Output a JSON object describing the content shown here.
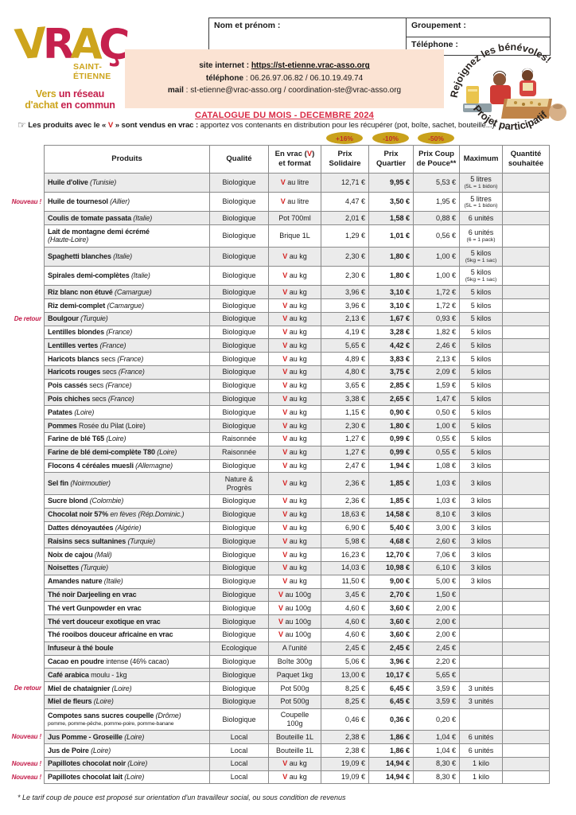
{
  "logo": {
    "l1": "V",
    "l2": "R",
    "l3": "A",
    "l4": "Ç",
    "city": "SAINT-\nÉTIENNE",
    "tagline1a": "Vers ",
    "tagline1b": "un réseau",
    "tagline2a": "d'achat ",
    "tagline2b": "en commun"
  },
  "form": {
    "name_label": "Nom et prénom :",
    "group_label": "Groupement :",
    "phone_label": "Téléphone :"
  },
  "contact": {
    "sep": " : ",
    "site_label": "site internet",
    "site_url": "https://st-etienne.vrac-asso.org",
    "phone_label": "téléphone",
    "phone_value": "06.26.97.06.82 / 06.10.19.49.74",
    "mail_label": "mail",
    "mail_value": "st-etienne@vrac-asso.org / coordination-ste@vrac-asso.org"
  },
  "catalogue_title": "CATALOGUE DU MOIS - DECEMBRE 2024",
  "badge": {
    "top": "Rejoignez les bénévoles!",
    "bottom": "Projet participatif"
  },
  "note": {
    "hand": "☞",
    "bold_pre": "Les produits avec le « ",
    "v": "V",
    "bold_post": " » sont vendus en vrac :",
    "rest": " apportez vos contenants en distribution pour les récupérer (pot, boîte, sachet, bouteille...)"
  },
  "discounts": [
    "+16%",
    "-10%",
    "-50%"
  ],
  "table": {
    "columns": {
      "produits": "Produits",
      "qualite": "Qualité",
      "envrac_pre": "En vrac (",
      "envrac_v": "V",
      "envrac_post": ")",
      "envrac_line2": "et format",
      "solidaire": "Prix\nSolidaire",
      "quartier": "Prix\nQuartier",
      "pouce": "Prix Coup\nde Pouce**",
      "maximum": "Maximum",
      "quantite": "Quantité\nsouhaitée"
    },
    "rows": [
      {
        "n": "Huile d'olive",
        "o": "(Tunisie)",
        "q": "Biologique",
        "v": true,
        "f": "au litre",
        "p1": "12,71 €",
        "p2": "9,95 €",
        "p3": "5,53 €",
        "m": "5 litres",
        "mn": "(5L = 1 bidon)"
      },
      {
        "t": "Nouveau !",
        "n": "Huile de tournesol",
        "o": "(Allier)",
        "q": "Biologique",
        "v": true,
        "f": "au litre",
        "p1": "4,47 €",
        "p2": "3,50 €",
        "p3": "1,95 €",
        "m": "5 litres",
        "mn": "(5L = 1 bidon)"
      },
      {
        "n": "Coulis de tomate passata",
        "o": "(Italie)",
        "q": "Biologique",
        "v": false,
        "f": "Pot 700ml",
        "p1": "2,01 €",
        "p2": "1,58 €",
        "p3": "0,88 €",
        "m": "6 unités"
      },
      {
        "n": "Lait de montagne demi écrémé",
        "o": "(Haute-Loire)",
        "o2": true,
        "q": "Biologique",
        "v": false,
        "f": "Brique 1L",
        "p1": "1,29 €",
        "p2": "1,01 €",
        "p3": "0,56 €",
        "m": "6 unités",
        "mn": "(6 = 1 pack)"
      },
      {
        "n": "Spaghetti blanches",
        "o": "(Italie)",
        "q": "Biologique",
        "v": true,
        "f": "au kg",
        "p1": "2,30 €",
        "p2": "1,80 €",
        "p3": "1,00 €",
        "m": "5 kilos",
        "mn": "(5kg = 1 sac)"
      },
      {
        "n": "Spirales demi-complètes",
        "o": "(Italie)",
        "q": "Biologique",
        "v": true,
        "f": "au kg",
        "p1": "2,30 €",
        "p2": "1,80 €",
        "p3": "1,00 €",
        "m": "5 kilos",
        "mn": "(5kg = 1 sac)"
      },
      {
        "n": "Riz blanc non étuvé",
        "o": "(Camargue)",
        "q": "Biologique",
        "v": true,
        "f": "au kg",
        "p1": "3,96 €",
        "p2": "3,10 €",
        "p3": "1,72 €",
        "m": "5 kilos"
      },
      {
        "n": "Riz demi-complet",
        "o": "(Camargue)",
        "q": "Biologique",
        "v": true,
        "f": "au kg",
        "p1": "3,96 €",
        "p2": "3,10 €",
        "p3": "1,72 €",
        "m": "5 kilos"
      },
      {
        "t": "De retour",
        "n": "Boulgour",
        "o": "(Turquie)",
        "q": "Biologique",
        "v": true,
        "f": "au kg",
        "p1": "2,13 €",
        "p2": "1,67 €",
        "p3": "0,93 €",
        "m": "5 kilos"
      },
      {
        "n": "Lentilles blondes",
        "o": "(France)",
        "q": "Biologique",
        "v": true,
        "f": "au kg",
        "p1": "4,19 €",
        "p2": "3,28 €",
        "p3": "1,82 €",
        "m": "5 kilos"
      },
      {
        "n": "Lentilles vertes",
        "o": "(France)",
        "q": "Biologique",
        "v": true,
        "f": "au kg",
        "p1": "5,65 €",
        "p2": "4,42 €",
        "p3": "2,46 €",
        "m": "5 kilos"
      },
      {
        "n": "Haricots blancs",
        "d": "secs",
        "o": "(France)",
        "q": "Biologique",
        "v": true,
        "f": "au kg",
        "p1": "4,89 €",
        "p2": "3,83 €",
        "p3": "2,13 €",
        "m": "5 kilos"
      },
      {
        "n": "Haricots rouges",
        "d": "secs",
        "o": "(France)",
        "q": "Biologique",
        "v": true,
        "f": "au kg",
        "p1": "4,80 €",
        "p2": "3,75 €",
        "p3": "2,09 €",
        "m": "5 kilos"
      },
      {
        "n": "Pois cassés",
        "d": "secs",
        "o": "(France)",
        "q": "Biologique",
        "v": true,
        "f": "au kg",
        "p1": "3,65 €",
        "p2": "2,85 €",
        "p3": "1,59 €",
        "m": "5 kilos"
      },
      {
        "n": "Pois chiches",
        "d": "secs",
        "o": "(France)",
        "q": "Biologique",
        "v": true,
        "f": "au kg",
        "p1": "3,38 €",
        "p2": "2,65 €",
        "p3": "1,47 €",
        "m": "5 kilos"
      },
      {
        "n": "Patates",
        "o": "(Loire)",
        "q": "Biologique",
        "v": true,
        "f": "au kg",
        "p1": "1,15 €",
        "p2": "0,90 €",
        "p3": "0,50 €",
        "m": "5 kilos"
      },
      {
        "n": "Pommes",
        "d": "Rosée du Pilat (Loire)",
        "q": "Biologique",
        "v": true,
        "f": "au kg",
        "p1": "2,30 €",
        "p2": "1,80 €",
        "p3": "1,00 €",
        "m": "5 kilos"
      },
      {
        "n": "Farine de blé T65",
        "o": "(Loire)",
        "q": "Raisonnée",
        "v": true,
        "f": "au kg",
        "p1": "1,27 €",
        "p2": "0,99 €",
        "p3": "0,55 €",
        "m": "5 kilos"
      },
      {
        "n": "Farine de blé demi-complète T80",
        "o": "(Loire)",
        "q": "Raisonnée",
        "v": true,
        "f": "au kg",
        "p1": "1,27 €",
        "p2": "0,99 €",
        "p3": "0,55 €",
        "m": "5 kilos"
      },
      {
        "n": "Flocons 4 céréales muesli",
        "o": "(Allemagne)",
        "q": "Biologique",
        "v": true,
        "f": "au kg",
        "p1": "2,47 €",
        "p2": "1,94 €",
        "p3": "1,08 €",
        "m": "3 kilos"
      },
      {
        "n": "Sel fin",
        "o": "(Noirmoutier)",
        "q": "Nature & Progrès",
        "v": true,
        "f": "au kg",
        "p1": "2,36 €",
        "p2": "1,85 €",
        "p3": "1,03 €",
        "m": "3 kilos"
      },
      {
        "n": "Sucre blond",
        "o": "(Colombie)",
        "q": "Biologique",
        "v": true,
        "f": "au kg",
        "p1": "2,36 €",
        "p2": "1,85 €",
        "p3": "1,03 €",
        "m": "3 kilos"
      },
      {
        "n": "Chocolat noir 57%",
        "o": "en fèves (Rép.Dominic.)",
        "q": "Biologique",
        "v": true,
        "f": "au kg",
        "p1": "18,63 €",
        "p2": "14,58 €",
        "p3": "8,10 €",
        "m": "3 kilos"
      },
      {
        "n": "Dattes dénoyautées",
        "o": "(Algérie)",
        "q": "Biologique",
        "v": true,
        "f": "au kg",
        "p1": "6,90 €",
        "p2": "5,40 €",
        "p3": "3,00 €",
        "m": "3 kilos"
      },
      {
        "n": "Raisins secs sultanines",
        "o": "(Turquie)",
        "q": "Biologique",
        "v": true,
        "f": "au kg",
        "p1": "5,98 €",
        "p2": "4,68 €",
        "p3": "2,60 €",
        "m": "3 kilos"
      },
      {
        "n": "Noix de cajou",
        "o": "(Mali)",
        "q": "Biologique",
        "v": true,
        "f": "au kg",
        "p1": "16,23 €",
        "p2": "12,70 €",
        "p3": "7,06 €",
        "m": "3 kilos"
      },
      {
        "n": "Noisettes",
        "o": "(Turquie)",
        "q": "Biologique",
        "v": true,
        "f": "au kg",
        "p1": "14,03 €",
        "p2": "10,98 €",
        "p3": "6,10 €",
        "m": "3 kilos"
      },
      {
        "n": "Amandes nature",
        "o": "(Italie)",
        "q": "Biologique",
        "v": true,
        "f": "au kg",
        "p1": "11,50 €",
        "p2": "9,00 €",
        "p3": "5,00 €",
        "m": "3 kilos"
      },
      {
        "n": "Thé noir Darjeeling en vrac",
        "q": "Biologique",
        "v": true,
        "f": "au 100g",
        "p1": "3,45 €",
        "p2": "2,70 €",
        "p3": "1,50 €"
      },
      {
        "n": "Thé vert Gunpowder en vrac",
        "q": "Biologique",
        "v": true,
        "f": "au 100g",
        "p1": "4,60 €",
        "p2": "3,60 €",
        "p3": "2,00 €"
      },
      {
        "n": "Thé vert douceur exotique en vrac",
        "q": "Biologique",
        "v": true,
        "f": "au 100g",
        "p1": "4,60 €",
        "p2": "3,60 €",
        "p3": "2,00 €"
      },
      {
        "n": "Thé rooibos douceur africaine en vrac",
        "q": "Biologique",
        "v": true,
        "f": "au 100g",
        "p1": "4,60 €",
        "p2": "3,60 €",
        "p3": "2,00 €"
      },
      {
        "n": "Infuseur à thé boule",
        "q": "Ecologique",
        "v": false,
        "f": "A l'unité",
        "p1": "2,45 €",
        "p2": "2,45 €",
        "p3": "2,45 €"
      },
      {
        "n": "Cacao en poudre",
        "d": "intense (46% cacao)",
        "q": "Biologique",
        "v": false,
        "f": "Boîte 300g",
        "p1": "5,06 €",
        "p2": "3,96 €",
        "p3": "2,20 €"
      },
      {
        "n": "Café arabica",
        "d": "moulu - 1kg",
        "q": "Biologique",
        "v": false,
        "f": "Paquet 1kg",
        "p1": "13,00 €",
        "p2": "10,17 €",
        "p3": "5,65 €"
      },
      {
        "t": "De retour",
        "n": "Miel de chataignier",
        "o": "(Loire)",
        "q": "Biologique",
        "v": false,
        "f": "Pot 500g",
        "p1": "8,25 €",
        "p2": "6,45 €",
        "p3": "3,59 €",
        "m": "3 unités"
      },
      {
        "n": "Miel de fleurs",
        "o": "(Loire)",
        "q": "Biologique",
        "v": false,
        "f": "Pot 500g",
        "p1": "8,25 €",
        "p2": "6,45 €",
        "p3": "3,59 €",
        "m": "3 unités"
      },
      {
        "n": "Compotes sans sucres coupelle",
        "o": "(Drôme)",
        "s": "pomme, pomme-pêche, pomme-poire, pomme-banane",
        "q": "Biologique",
        "v": false,
        "f": "Coupelle 100g",
        "p1": "0,46 €",
        "p2": "0,36 €",
        "p3": "0,20 €"
      },
      {
        "t": "Nouveau !",
        "n": "Jus Pomme - Groseille",
        "o": "(Loire)",
        "q": "Local",
        "v": false,
        "f": "Bouteille 1L",
        "p1": "2,38 €",
        "p2": "1,86 €",
        "p3": "1,04 €",
        "m": "6 unités"
      },
      {
        "n": "Jus de Poire",
        "o": "(Loire)",
        "q": "Local",
        "v": false,
        "f": "Bouteille 1L",
        "p1": "2,38 €",
        "p2": "1,86 €",
        "p3": "1,04 €",
        "m": "6 unités"
      },
      {
        "t": "Nouveau !",
        "n": "Papillotes chocolat noir",
        "o": "(Loire)",
        "q": "Local",
        "v": true,
        "f": "au kg",
        "p1": "19,09 €",
        "p2": "14,94 €",
        "p3": "8,30 €",
        "m": "1 kilo"
      },
      {
        "t": "Nouveau !",
        "n": "Papillotes chocolat lait",
        "o": "(Loire)",
        "q": "Local",
        "v": true,
        "f": "au kg",
        "p1": "19,09 €",
        "p2": "14,94 €",
        "p3": "8,30 €",
        "m": "1 kilo"
      }
    ]
  },
  "footnote": "* Le tarif coup de pouce est proposé sur orientation d'un travailleur social, ou sous condition de revenus",
  "colors": {
    "gold": "#cda41c",
    "crimson": "#c5204d",
    "red_v": "#d42222",
    "title_red": "#d92b45",
    "peach": "#fbe3d3",
    "row_gray": "#ebebeb",
    "oval_gold": "#c9a11b"
  }
}
